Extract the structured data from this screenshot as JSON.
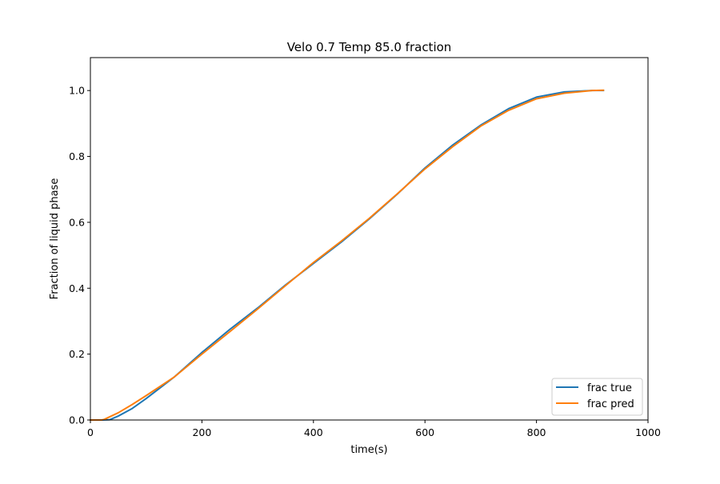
{
  "chart_data": {
    "type": "line",
    "title": "Velo 0.7 Temp 85.0 fraction",
    "xlabel": "time(s)",
    "ylabel": "Fraction of liquid phase",
    "xlim": [
      0,
      1000
    ],
    "ylim": [
      0,
      1.1
    ],
    "xticks": [
      0,
      200,
      400,
      600,
      800,
      1000
    ],
    "yticks": [
      0.0,
      0.2,
      0.4,
      0.6,
      0.8,
      1.0
    ],
    "xtick_labels": [
      "0",
      "200",
      "400",
      "600",
      "800",
      "1000"
    ],
    "ytick_labels": [
      "0.0",
      "0.2",
      "0.4",
      "0.6",
      "0.8",
      "1.0"
    ],
    "grid": false,
    "legend_position": "lower-right",
    "series": [
      {
        "name": "frac true",
        "color": "#1f77b4",
        "x": [
          0,
          20,
          35,
          50,
          75,
          100,
          150,
          200,
          250,
          300,
          350,
          400,
          450,
          500,
          550,
          600,
          650,
          700,
          750,
          800,
          850,
          900,
          920
        ],
        "y": [
          0.0,
          0.0,
          0.001,
          0.012,
          0.035,
          0.065,
          0.13,
          0.205,
          0.275,
          0.34,
          0.41,
          0.475,
          0.54,
          0.61,
          0.685,
          0.765,
          0.835,
          0.895,
          0.945,
          0.98,
          0.996,
          1.0,
          1.0
        ]
      },
      {
        "name": "frac pred",
        "color": "#ff7f0e",
        "x": [
          0,
          20,
          25,
          50,
          75,
          100,
          150,
          200,
          250,
          300,
          350,
          400,
          450,
          500,
          550,
          600,
          650,
          700,
          750,
          800,
          850,
          900,
          920
        ],
        "y": [
          0.0,
          0.0,
          0.002,
          0.022,
          0.047,
          0.074,
          0.13,
          0.2,
          0.268,
          0.337,
          0.408,
          0.478,
          0.543,
          0.612,
          0.686,
          0.762,
          0.83,
          0.892,
          0.94,
          0.975,
          0.992,
          1.0,
          1.001
        ]
      }
    ]
  }
}
